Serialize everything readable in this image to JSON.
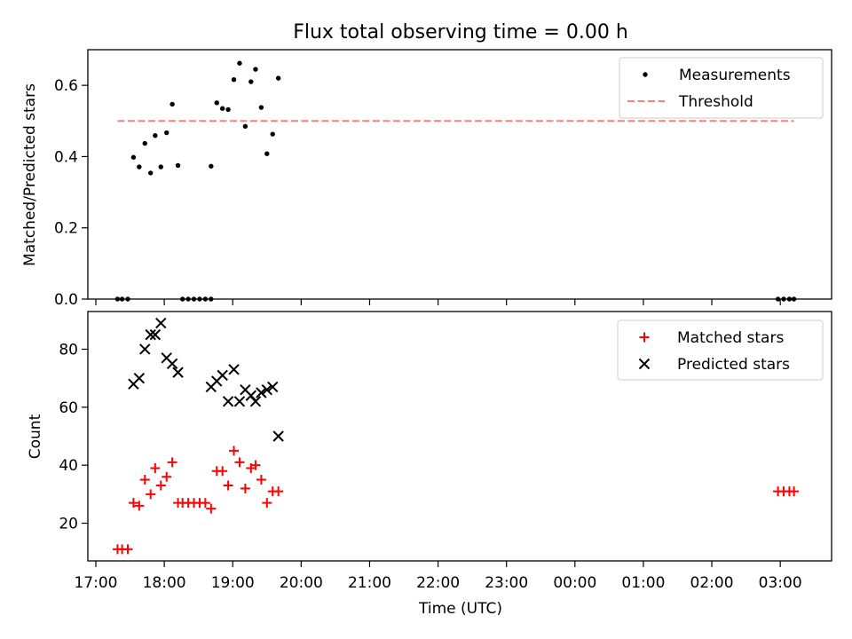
{
  "figure": {
    "title": "Flux total observing time = 0.00 h",
    "xlabel": "Time (UTC)"
  },
  "chart_data": [
    {
      "type": "scatter",
      "ylabel": "Matched/Predicted stars",
      "ylim": [
        0,
        0.7
      ],
      "xlim": [
        "16:53",
        "03:45"
      ],
      "yticks": [
        "0.0",
        "0.2",
        "0.4",
        "0.6"
      ],
      "grid": false,
      "legend_position": "top-right",
      "series": [
        {
          "name": "Measurements",
          "color": "#000000",
          "marker": "dot",
          "points": [
            {
              "x": "17:19",
              "y": 0.0
            },
            {
              "x": "17:23",
              "y": 0.0
            },
            {
              "x": "17:28",
              "y": 0.0
            },
            {
              "x": "17:33",
              "y": 0.398
            },
            {
              "x": "17:38",
              "y": 0.371
            },
            {
              "x": "17:43",
              "y": 0.437
            },
            {
              "x": "17:48",
              "y": 0.354
            },
            {
              "x": "17:52",
              "y": 0.459
            },
            {
              "x": "17:57",
              "y": 0.371
            },
            {
              "x": "18:02",
              "y": 0.467
            },
            {
              "x": "18:07",
              "y": 0.547
            },
            {
              "x": "18:12",
              "y": 0.375
            },
            {
              "x": "18:16",
              "y": 0.0
            },
            {
              "x": "18:21",
              "y": 0.0
            },
            {
              "x": "18:26",
              "y": 0.0
            },
            {
              "x": "18:31",
              "y": 0.0
            },
            {
              "x": "18:36",
              "y": 0.0
            },
            {
              "x": "18:41",
              "y": 0.0
            },
            {
              "x": "18:41",
              "y": 0.373
            },
            {
              "x": "18:46",
              "y": 0.551
            },
            {
              "x": "18:51",
              "y": 0.535
            },
            {
              "x": "18:56",
              "y": 0.532
            },
            {
              "x": "19:01",
              "y": 0.616
            },
            {
              "x": "19:06",
              "y": 0.662
            },
            {
              "x": "19:11",
              "y": 0.485
            },
            {
              "x": "19:16",
              "y": 0.61
            },
            {
              "x": "19:20",
              "y": 0.645
            },
            {
              "x": "19:25",
              "y": 0.538
            },
            {
              "x": "19:30",
              "y": 0.408
            },
            {
              "x": "19:35",
              "y": 0.463
            },
            {
              "x": "19:40",
              "y": 0.62
            },
            {
              "x": "02:58",
              "y": 0.0
            },
            {
              "x": "03:03",
              "y": 0.0
            },
            {
              "x": "03:08",
              "y": 0.0
            },
            {
              "x": "03:12",
              "y": 0.0
            }
          ]
        },
        {
          "name": "Threshold",
          "color": "#ff7f7f",
          "line": "dashed",
          "points": [
            {
              "x": "17:19",
              "y": 0.5
            },
            {
              "x": "03:12",
              "y": 0.5
            }
          ]
        }
      ]
    },
    {
      "type": "scatter",
      "ylabel": "Count",
      "xlabel": "Time (UTC)",
      "ylim": [
        7,
        93
      ],
      "xlim": [
        "16:53",
        "03:45"
      ],
      "yticks": [
        "20",
        "40",
        "60",
        "80"
      ],
      "xticks": [
        "17:00",
        "18:00",
        "19:00",
        "20:00",
        "21:00",
        "22:00",
        "23:00",
        "00:00",
        "01:00",
        "02:00",
        "03:00"
      ],
      "grid": false,
      "legend_position": "top-right",
      "series": [
        {
          "name": "Matched stars",
          "color": "#ff0000",
          "marker": "plus",
          "points": [
            {
              "x": "17:19",
              "y": 11
            },
            {
              "x": "17:23",
              "y": 11
            },
            {
              "x": "17:28",
              "y": 11
            },
            {
              "x": "17:33",
              "y": 27
            },
            {
              "x": "17:38",
              "y": 26
            },
            {
              "x": "17:43",
              "y": 35
            },
            {
              "x": "17:48",
              "y": 30
            },
            {
              "x": "17:52",
              "y": 39
            },
            {
              "x": "17:57",
              "y": 33
            },
            {
              "x": "18:02",
              "y": 36
            },
            {
              "x": "18:07",
              "y": 41
            },
            {
              "x": "18:12",
              "y": 27
            },
            {
              "x": "18:16",
              "y": 27
            },
            {
              "x": "18:21",
              "y": 27
            },
            {
              "x": "18:26",
              "y": 27
            },
            {
              "x": "18:31",
              "y": 27
            },
            {
              "x": "18:36",
              "y": 27
            },
            {
              "x": "18:41",
              "y": 25
            },
            {
              "x": "18:46",
              "y": 38
            },
            {
              "x": "18:51",
              "y": 38
            },
            {
              "x": "18:56",
              "y": 33
            },
            {
              "x": "19:01",
              "y": 45
            },
            {
              "x": "19:06",
              "y": 41
            },
            {
              "x": "19:11",
              "y": 32
            },
            {
              "x": "19:16",
              "y": 39
            },
            {
              "x": "19:20",
              "y": 40
            },
            {
              "x": "19:25",
              "y": 35
            },
            {
              "x": "19:30",
              "y": 27
            },
            {
              "x": "19:35",
              "y": 31
            },
            {
              "x": "19:40",
              "y": 31
            },
            {
              "x": "02:58",
              "y": 31
            },
            {
              "x": "03:03",
              "y": 31
            },
            {
              "x": "03:08",
              "y": 31
            },
            {
              "x": "03:12",
              "y": 31
            }
          ]
        },
        {
          "name": "Predicted stars",
          "color": "#000000",
          "marker": "x",
          "points": [
            {
              "x": "17:33",
              "y": 68
            },
            {
              "x": "17:38",
              "y": 70
            },
            {
              "x": "17:43",
              "y": 80
            },
            {
              "x": "17:48",
              "y": 85
            },
            {
              "x": "17:52",
              "y": 85
            },
            {
              "x": "17:57",
              "y": 89
            },
            {
              "x": "18:02",
              "y": 77
            },
            {
              "x": "18:07",
              "y": 75
            },
            {
              "x": "18:12",
              "y": 72
            },
            {
              "x": "18:41",
              "y": 67
            },
            {
              "x": "18:46",
              "y": 69
            },
            {
              "x": "18:51",
              "y": 71
            },
            {
              "x": "18:56",
              "y": 62
            },
            {
              "x": "19:01",
              "y": 73
            },
            {
              "x": "19:06",
              "y": 62
            },
            {
              "x": "19:11",
              "y": 66
            },
            {
              "x": "19:16",
              "y": 64
            },
            {
              "x": "19:20",
              "y": 62
            },
            {
              "x": "19:25",
              "y": 65
            },
            {
              "x": "19:30",
              "y": 66
            },
            {
              "x": "19:35",
              "y": 67
            },
            {
              "x": "19:40",
              "y": 50
            }
          ]
        }
      ]
    }
  ]
}
